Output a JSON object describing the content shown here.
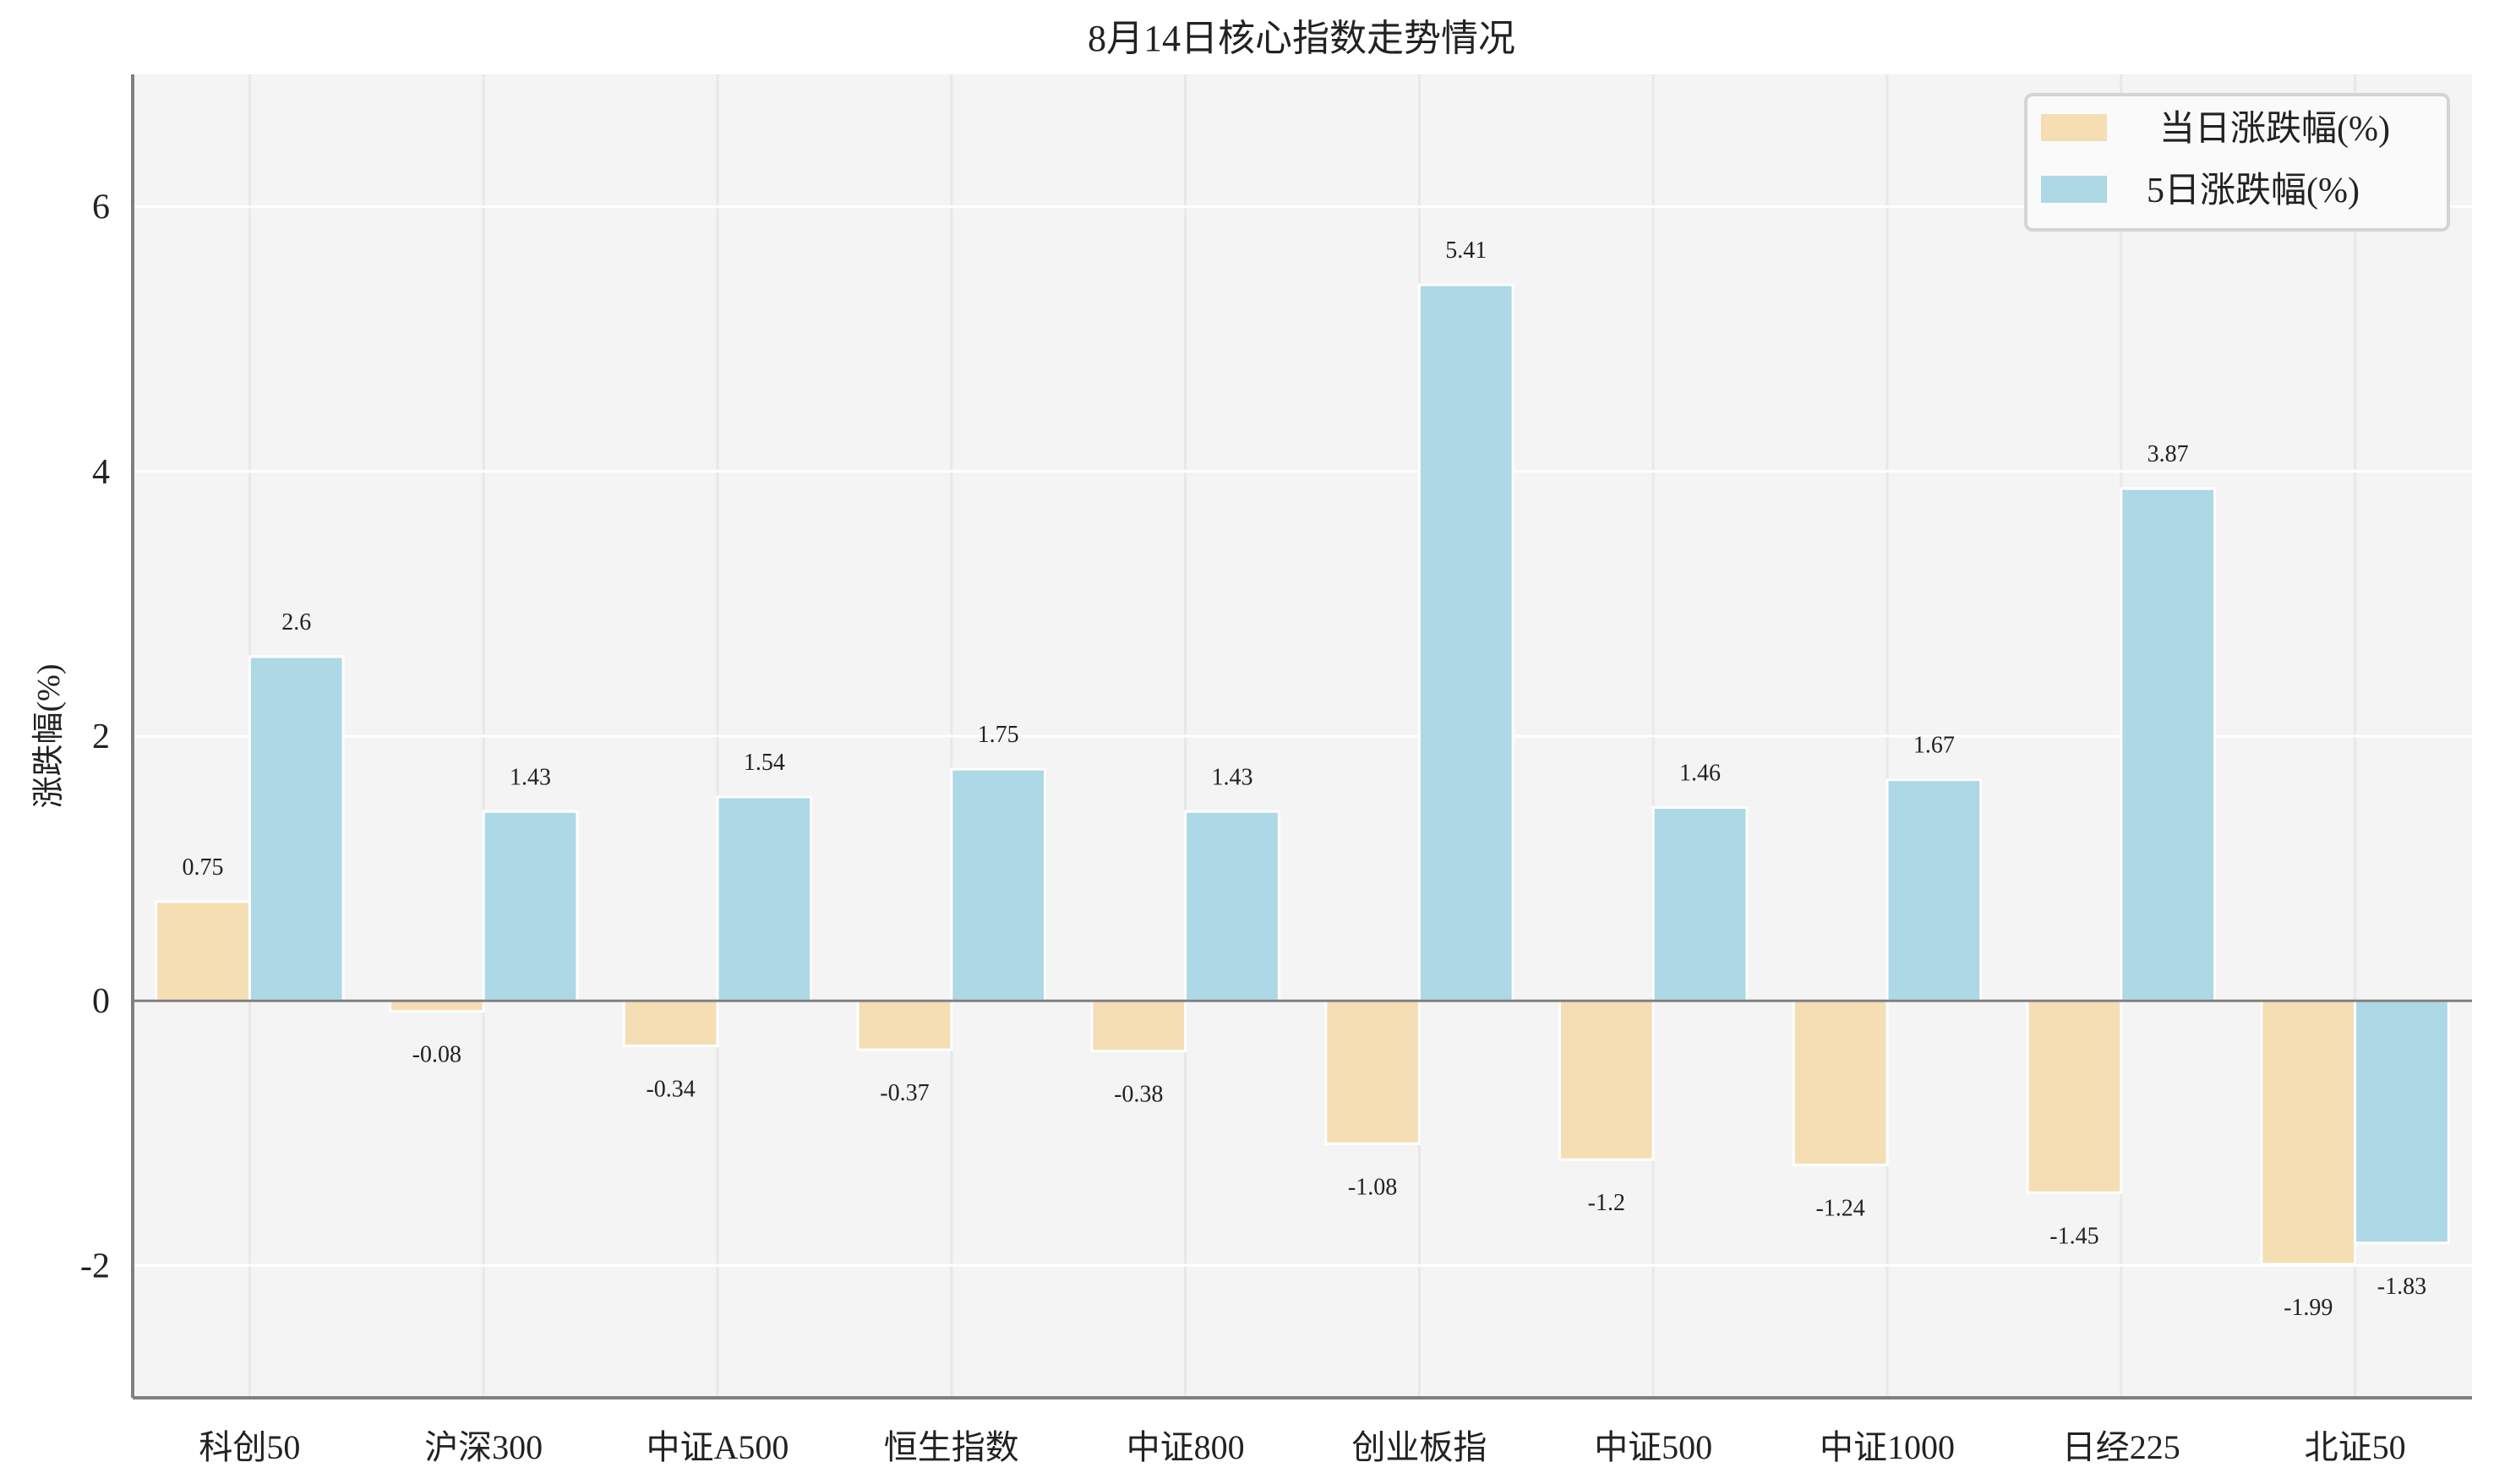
{
  "chart_data": {
    "type": "bar",
    "title": "8月14日核心指数走势情况",
    "xlabel": "",
    "ylabel": "涨跌幅(%)",
    "ylim": [
      -3,
      7
    ],
    "yticks": [
      -2,
      0,
      2,
      4,
      6
    ],
    "grid": true,
    "legend_position": "upper right",
    "categories": [
      "科创50",
      "沪深300",
      "中证A500",
      "恒生指数",
      "中证800",
      "创业板指",
      "中证500",
      "中证1000",
      "日经225",
      "北证50"
    ],
    "series": [
      {
        "name": "当日涨跌幅(%)",
        "color": "#f5deb3",
        "values": [
          0.75,
          -0.08,
          -0.34,
          -0.37,
          -0.38,
          -1.08,
          -1.2,
          -1.24,
          -1.45,
          -1.99
        ]
      },
      {
        "name": "5日涨跌幅(%)",
        "color": "#add8e6",
        "values": [
          2.6,
          1.43,
          1.54,
          1.75,
          1.43,
          5.41,
          1.46,
          1.67,
          3.87,
          -1.83
        ]
      }
    ]
  },
  "colors": {
    "plot_background": "#f4f4f4",
    "grid": "#ffffff",
    "vgrid": "#e8e8e8",
    "axis": "#808080",
    "text": "#222222"
  }
}
